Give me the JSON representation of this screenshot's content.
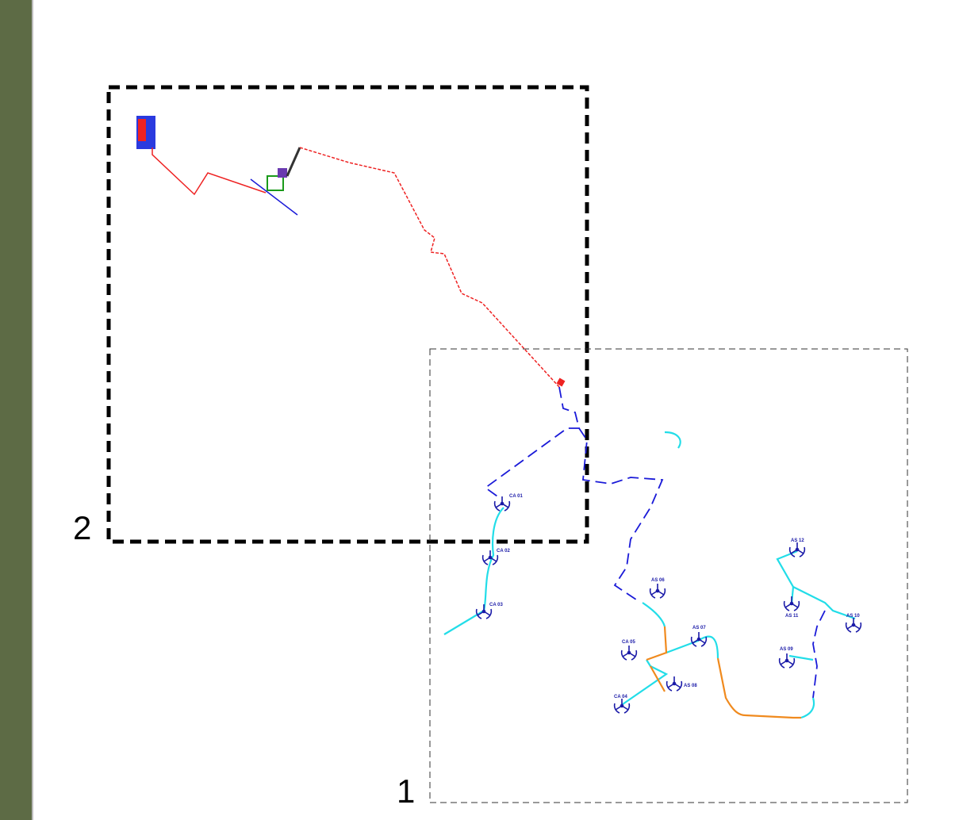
{
  "frames": [
    {
      "label": "1"
    },
    {
      "label": "2"
    }
  ],
  "turbines": [
    {
      "label": "CA 01"
    },
    {
      "label": "CA 02"
    },
    {
      "label": "CA 03"
    },
    {
      "label": "CA 04"
    },
    {
      "label": "CA 05"
    },
    {
      "label": "AS 06"
    },
    {
      "label": "AS 07"
    },
    {
      "label": "AS 08"
    },
    {
      "label": "AS 09"
    },
    {
      "label": "AS 10"
    },
    {
      "label": "AS 11"
    },
    {
      "label": "AS 12"
    }
  ]
}
